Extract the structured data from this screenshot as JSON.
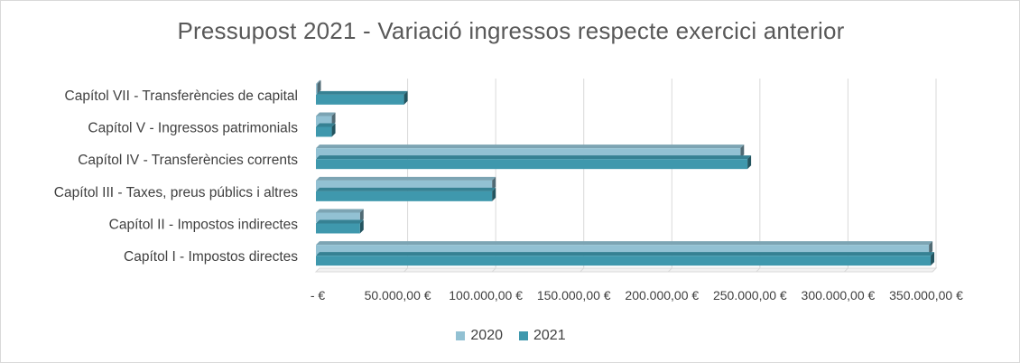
{
  "chart_data": {
    "type": "bar",
    "orientation": "horizontal",
    "title": "Pressupost 2021 - Variació ingressos respecte exercici anterior",
    "categories": [
      "Capítol I - Impostos directes",
      "Capítol II - Impostos indirectes",
      "Capítol III - Taxes, preus públics i altres",
      "Capítol IV - Transferències corrents",
      "Capítol V - Ingressos patrimonials",
      "Capítol VII - Transferències de capital"
    ],
    "series": [
      {
        "name": "2020",
        "color": "#92c1d3",
        "values": [
          348000,
          25000,
          100000,
          241000,
          9000,
          0
        ]
      },
      {
        "name": "2021",
        "color": "#3f98ad",
        "values": [
          349000,
          25000,
          100000,
          245000,
          9000,
          50000
        ]
      }
    ],
    "xlim": [
      0,
      350000
    ],
    "x_ticks": [
      0,
      50000,
      100000,
      150000,
      200000,
      250000,
      300000,
      350000
    ],
    "x_tick_labels": [
      "-  €",
      "50.000,00 €",
      "100.000,00 €",
      "150.000,00 €",
      "200.000,00 €",
      "250.000,00 €",
      "300.000,00 €",
      "350.000,00 €"
    ],
    "grid": "vertical",
    "legend_position": "bottom",
    "style": "3d-bar"
  }
}
